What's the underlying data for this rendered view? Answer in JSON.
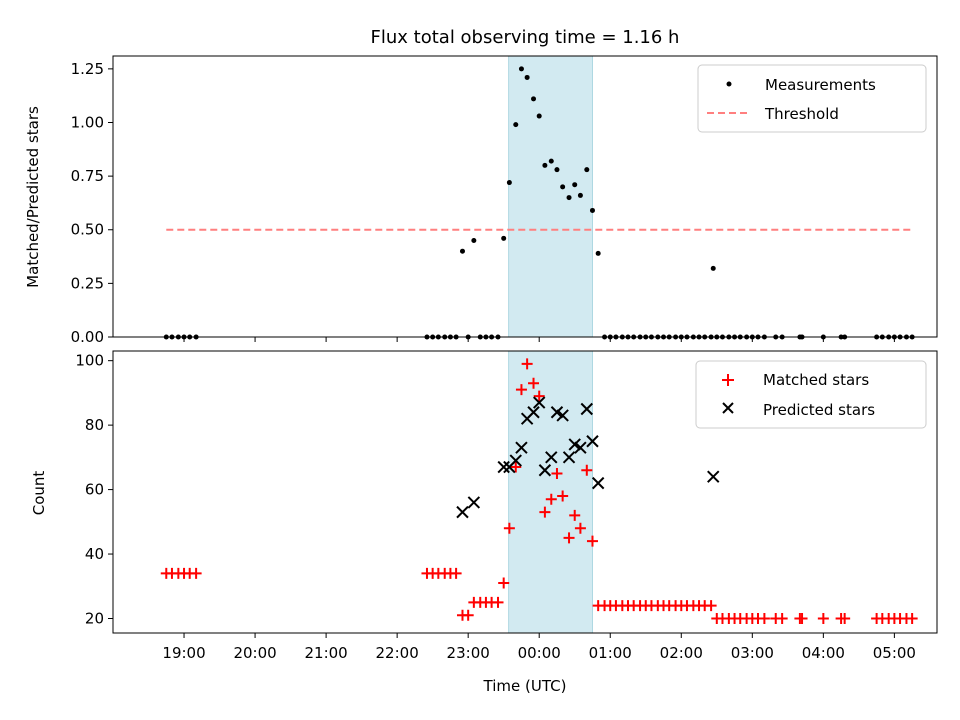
{
  "title": "Flux total observing time = 1.16 h",
  "colors": {
    "measurement": "#000000",
    "threshold": "#ff7f7f",
    "matched": "#ff0000",
    "predicted": "#000000",
    "shade": "#add8e6"
  },
  "chart_data": [
    {
      "type": "scatter",
      "name": "ratio",
      "ylabel": "Matched/Predicted stars",
      "ylim": [
        0,
        1.31
      ],
      "yticks": [
        "0.00",
        "0.25",
        "0.50",
        "0.75",
        "1.00",
        "1.25"
      ],
      "yticks_values": [
        0,
        0.25,
        0.5,
        0.75,
        1.0,
        1.25
      ],
      "shaded_region": [
        23.57,
        24.75
      ],
      "legend": {
        "placement": "top-right",
        "entries": [
          "Measurements",
          "Threshold"
        ]
      },
      "threshold": {
        "name": "Threshold",
        "y": 0.5,
        "x_range": [
          18.75,
          29.25
        ]
      },
      "series": [
        {
          "name": "Measurements",
          "marker": "dot",
          "points": [
            [
              18.75,
              0
            ],
            [
              18.83,
              0
            ],
            [
              18.92,
              0
            ],
            [
              19.0,
              0
            ],
            [
              19.08,
              0
            ],
            [
              19.17,
              0
            ],
            [
              22.42,
              0
            ],
            [
              22.5,
              0
            ],
            [
              22.58,
              0
            ],
            [
              22.67,
              0
            ],
            [
              22.75,
              0
            ],
            [
              22.83,
              0
            ],
            [
              22.92,
              0.4
            ],
            [
              23.0,
              0
            ],
            [
              23.08,
              0.45
            ],
            [
              23.17,
              0
            ],
            [
              23.25,
              0
            ],
            [
              23.33,
              0
            ],
            [
              23.42,
              0
            ],
            [
              23.5,
              0.46
            ],
            [
              23.58,
              0.72
            ],
            [
              23.67,
              0.99
            ],
            [
              23.75,
              1.25
            ],
            [
              23.83,
              1.21
            ],
            [
              23.92,
              1.11
            ],
            [
              24.0,
              1.03
            ],
            [
              24.08,
              0.8
            ],
            [
              24.17,
              0.82
            ],
            [
              24.25,
              0.78
            ],
            [
              24.33,
              0.7
            ],
            [
              24.42,
              0.65
            ],
            [
              24.5,
              0.71
            ],
            [
              24.58,
              0.66
            ],
            [
              24.67,
              0.78
            ],
            [
              24.75,
              0.59
            ],
            [
              24.83,
              0.39
            ],
            [
              24.92,
              0
            ],
            [
              25.0,
              0
            ],
            [
              25.08,
              0
            ],
            [
              25.17,
              0
            ],
            [
              25.25,
              0
            ],
            [
              25.33,
              0
            ],
            [
              25.42,
              0
            ],
            [
              25.5,
              0
            ],
            [
              25.58,
              0
            ],
            [
              25.67,
              0
            ],
            [
              25.75,
              0
            ],
            [
              25.83,
              0
            ],
            [
              25.92,
              0
            ],
            [
              26.0,
              0
            ],
            [
              26.08,
              0
            ],
            [
              26.17,
              0
            ],
            [
              26.25,
              0
            ],
            [
              26.33,
              0
            ],
            [
              26.42,
              0
            ],
            [
              26.45,
              0.32
            ],
            [
              26.5,
              0
            ],
            [
              26.58,
              0
            ],
            [
              26.67,
              0
            ],
            [
              26.75,
              0
            ],
            [
              26.83,
              0
            ],
            [
              26.92,
              0
            ],
            [
              27.0,
              0
            ],
            [
              27.08,
              0
            ],
            [
              27.17,
              0
            ],
            [
              27.33,
              0
            ],
            [
              27.42,
              0
            ],
            [
              27.67,
              0
            ],
            [
              27.7,
              0
            ],
            [
              28.0,
              0
            ],
            [
              28.25,
              0
            ],
            [
              28.3,
              0
            ],
            [
              28.75,
              0
            ],
            [
              28.83,
              0
            ],
            [
              28.92,
              0
            ],
            [
              29.0,
              0
            ],
            [
              29.08,
              0
            ],
            [
              29.17,
              0
            ],
            [
              29.25,
              0
            ]
          ]
        }
      ]
    },
    {
      "type": "scatter",
      "name": "counts",
      "ylabel": "Count",
      "xlabel": "Time (UTC)",
      "xlim": [
        18.0,
        29.6
      ],
      "ylim": [
        15.5,
        103
      ],
      "yticks": [
        "20",
        "40",
        "60",
        "80",
        "100"
      ],
      "yticks_values": [
        20,
        40,
        60,
        80,
        100
      ],
      "xticks": [
        "19:00",
        "20:00",
        "21:00",
        "22:00",
        "23:00",
        "00:00",
        "01:00",
        "02:00",
        "03:00",
        "04:00",
        "05:00"
      ],
      "xticks_values": [
        19,
        20,
        21,
        22,
        23,
        24,
        25,
        26,
        27,
        28,
        29
      ],
      "shaded_region": [
        23.57,
        24.75
      ],
      "legend": {
        "placement": "top-right",
        "entries": [
          "Matched stars",
          "Predicted stars"
        ]
      },
      "series": [
        {
          "name": "Matched stars",
          "marker": "plus",
          "points": [
            [
              18.75,
              34
            ],
            [
              18.83,
              34
            ],
            [
              18.92,
              34
            ],
            [
              19.0,
              34
            ],
            [
              19.08,
              34
            ],
            [
              19.17,
              34
            ],
            [
              22.42,
              34
            ],
            [
              22.5,
              34
            ],
            [
              22.58,
              34
            ],
            [
              22.67,
              34
            ],
            [
              22.75,
              34
            ],
            [
              22.83,
              34
            ],
            [
              22.92,
              21
            ],
            [
              23.0,
              21
            ],
            [
              23.08,
              25
            ],
            [
              23.17,
              25
            ],
            [
              23.25,
              25
            ],
            [
              23.33,
              25
            ],
            [
              23.42,
              25
            ],
            [
              23.5,
              31
            ],
            [
              23.58,
              48
            ],
            [
              23.67,
              67
            ],
            [
              23.75,
              91
            ],
            [
              23.83,
              99
            ],
            [
              23.92,
              93
            ],
            [
              24.0,
              89
            ],
            [
              24.08,
              53
            ],
            [
              24.17,
              57
            ],
            [
              24.25,
              65
            ],
            [
              24.33,
              58
            ],
            [
              24.42,
              45
            ],
            [
              24.5,
              52
            ],
            [
              24.58,
              48
            ],
            [
              24.67,
              66
            ],
            [
              24.75,
              44
            ],
            [
              24.83,
              24
            ],
            [
              24.92,
              24
            ],
            [
              25.0,
              24
            ],
            [
              25.08,
              24
            ],
            [
              25.17,
              24
            ],
            [
              25.25,
              24
            ],
            [
              25.33,
              24
            ],
            [
              25.42,
              24
            ],
            [
              25.5,
              24
            ],
            [
              25.58,
              24
            ],
            [
              25.67,
              24
            ],
            [
              25.75,
              24
            ],
            [
              25.83,
              24
            ],
            [
              25.92,
              24
            ],
            [
              26.0,
              24
            ],
            [
              26.08,
              24
            ],
            [
              26.17,
              24
            ],
            [
              26.25,
              24
            ],
            [
              26.33,
              24
            ],
            [
              26.42,
              24
            ],
            [
              26.5,
              20
            ],
            [
              26.58,
              20
            ],
            [
              26.67,
              20
            ],
            [
              26.75,
              20
            ],
            [
              26.83,
              20
            ],
            [
              26.92,
              20
            ],
            [
              27.0,
              20
            ],
            [
              27.08,
              20
            ],
            [
              27.17,
              20
            ],
            [
              27.33,
              20
            ],
            [
              27.42,
              20
            ],
            [
              27.67,
              20
            ],
            [
              27.7,
              20
            ],
            [
              28.0,
              20
            ],
            [
              28.25,
              20
            ],
            [
              28.3,
              20
            ],
            [
              28.75,
              20
            ],
            [
              28.83,
              20
            ],
            [
              28.92,
              20
            ],
            [
              29.0,
              20
            ],
            [
              29.08,
              20
            ],
            [
              29.17,
              20
            ],
            [
              29.25,
              20
            ]
          ]
        },
        {
          "name": "Predicted stars",
          "marker": "x",
          "points": [
            [
              22.92,
              53
            ],
            [
              23.08,
              56
            ],
            [
              23.5,
              67
            ],
            [
              23.58,
              67
            ],
            [
              23.67,
              69
            ],
            [
              23.75,
              73
            ],
            [
              23.83,
              82
            ],
            [
              23.92,
              84
            ],
            [
              24.0,
              87
            ],
            [
              24.08,
              66
            ],
            [
              24.17,
              70
            ],
            [
              24.25,
              84
            ],
            [
              24.33,
              83
            ],
            [
              24.42,
              70
            ],
            [
              24.5,
              74
            ],
            [
              24.58,
              73
            ],
            [
              24.67,
              85
            ],
            [
              24.75,
              75
            ],
            [
              24.83,
              62
            ],
            [
              26.45,
              64
            ]
          ]
        }
      ]
    }
  ]
}
